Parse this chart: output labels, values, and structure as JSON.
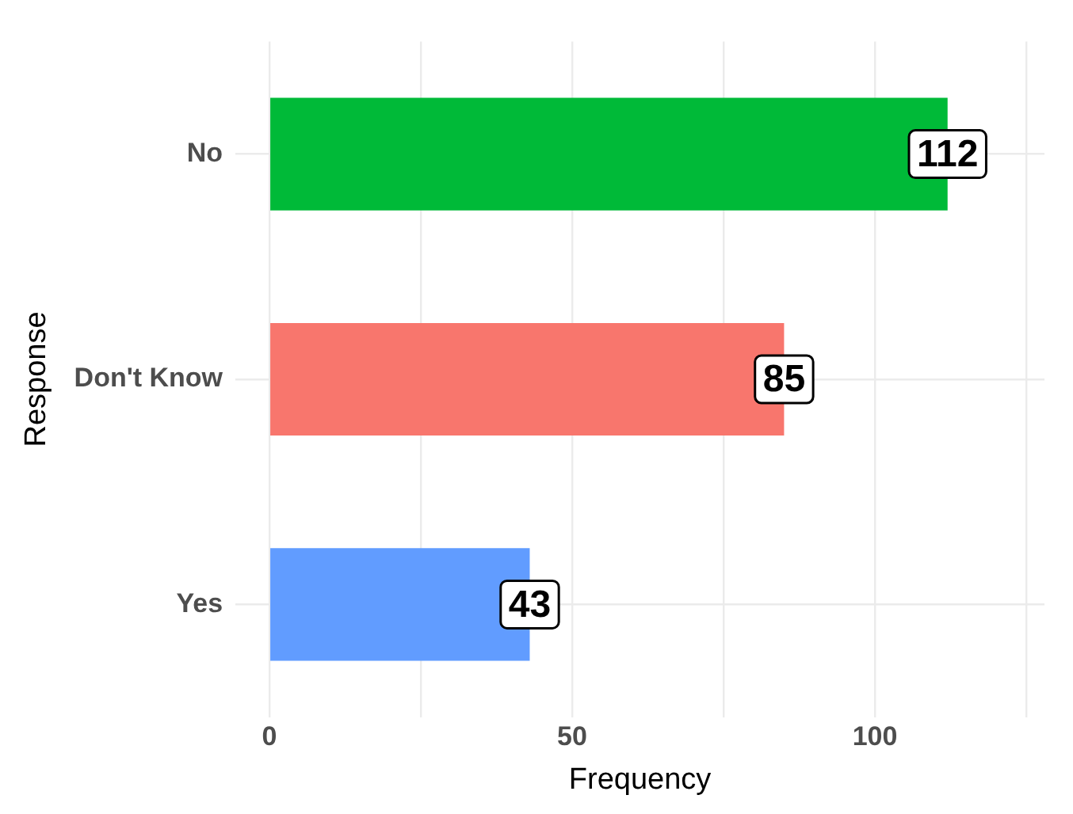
{
  "chart_data": {
    "type": "bar",
    "orientation": "horizontal",
    "xlabel": "Frequency",
    "ylabel": "Response",
    "categories": [
      "No",
      "Don't Know",
      "Yes"
    ],
    "values": [
      112,
      85,
      43
    ],
    "colors": [
      "#00ba38",
      "#f8766d",
      "#619cff"
    ],
    "xlim": [
      -5.6,
      128
    ],
    "xticks": [
      0,
      {
        "value": 25,
        "label": null
      },
      50,
      {
        "value": 75,
        "label": null
      },
      100,
      {
        "value": 125,
        "label": null
      }
    ],
    "grid": true,
    "data_labels": true,
    "legend": false
  }
}
